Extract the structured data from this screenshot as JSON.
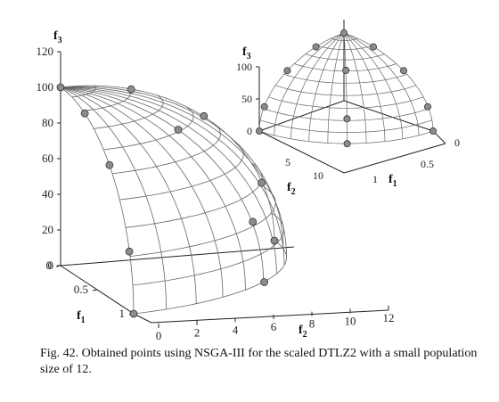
{
  "caption": "Fig. 42.   Obtained points using NSGA-III for the scaled DTLZ2 with a small population size of 12.",
  "chart_data": [
    {
      "type": "scatter3d",
      "view": "main",
      "f1_ticks": [
        "0",
        "0.5",
        "1"
      ],
      "f2_ticks": [
        "0",
        "2",
        "4",
        "6",
        "8",
        "10",
        "12"
      ],
      "f3_ticks": [
        "0",
        "20",
        "40",
        "60",
        "80",
        "100",
        "120"
      ],
      "f1_label": "f",
      "f1_sub": "1",
      "f2_label": "f",
      "f2_sub": "2",
      "f3_label": "f",
      "f3_sub": "3",
      "surface": "scaled unit sphere octant (f1 scale 1, f2 scale 10, f3 scale 100)",
      "points": [
        {
          "f1": 0.0,
          "f2": 0.0,
          "f3": 100.0
        },
        {
          "f1": 0.33,
          "f2": 0.0,
          "f3": 94.3
        },
        {
          "f1": 0.0,
          "f2": 3.3,
          "f3": 94.3
        },
        {
          "f1": 0.67,
          "f2": 0.0,
          "f3": 74.5
        },
        {
          "f1": 0.0,
          "f2": 6.7,
          "f3": 74.5
        },
        {
          "f1": 0.41,
          "f2": 4.1,
          "f3": 81.6
        },
        {
          "f1": 0.94,
          "f2": 0.0,
          "f3": 33.3
        },
        {
          "f1": 0.0,
          "f2": 9.4,
          "f3": 33.3
        },
        {
          "f1": 0.67,
          "f2": 6.7,
          "f3": 33.3
        },
        {
          "f1": 1.0,
          "f2": 0.0,
          "f3": 0.0
        },
        {
          "f1": 0.71,
          "f2": 7.1,
          "f3": 0.0
        },
        {
          "f1": 0.0,
          "f2": 10.0,
          "f3": 0.0
        }
      ]
    },
    {
      "type": "scatter3d",
      "view": "inset-top",
      "f1_ticks": [
        "0",
        "0.5",
        "1"
      ],
      "f2_ticks": [
        "5",
        "10"
      ],
      "f3_ticks": [
        "0",
        "50",
        "100"
      ],
      "f1_label": "f",
      "f1_sub": "1",
      "f2_label": "f",
      "f2_sub": "2",
      "f3_label": "f",
      "f3_sub": "3"
    }
  ]
}
